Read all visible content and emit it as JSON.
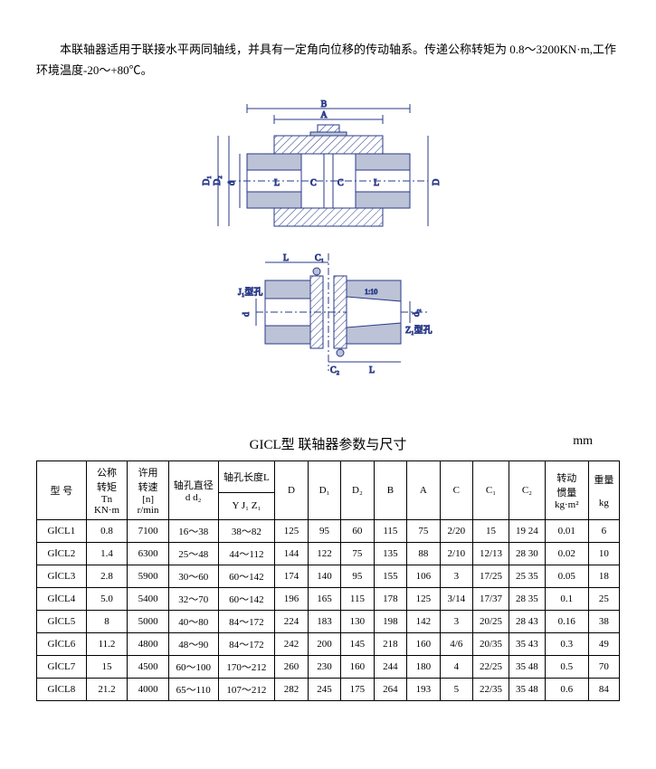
{
  "intro": "本联轴器适用于联接水平两同轴线，并具有一定角向位移的传动轴系。传递公称转矩为 0.8～3200KN·m,工作环境温度-20～+80℃。",
  "diagram": {
    "top_labels": [
      "B",
      "A",
      "L",
      "C",
      "C",
      "L",
      "D",
      "D₂",
      "D₁",
      "d",
      "d₁"
    ],
    "bottom_labels": [
      "L",
      "C₁",
      "J₁型孔",
      "d",
      "C₂",
      "L",
      "Z₁型孔",
      "d₂",
      "1:10"
    ],
    "stroke": "#2a3a8a",
    "fill": "#bcc3d6",
    "hatch": "#2a3a8a"
  },
  "tableTitle": "GICL型 联轴器参数与尺寸",
  "tableUnit": "mm",
  "headers": {
    "model": "型 号",
    "tn": [
      "公称",
      "转矩",
      "Tn",
      "KN·m"
    ],
    "n": [
      "许用",
      "转速",
      "[n]",
      "r/min"
    ],
    "d": [
      "轴孔直径",
      "d d₂"
    ],
    "l": [
      "轴孔长度L",
      "Y J₁ Z₁"
    ],
    "D": "D",
    "D1": "D₁",
    "D2": "D₂",
    "B": "B",
    "A": "A",
    "C": "C",
    "C1": "C₁",
    "C2": "C₂",
    "J": [
      "转动",
      "惯量",
      "kg·m²"
    ],
    "W": [
      "重量",
      "kg"
    ]
  },
  "rows": [
    {
      "model": "GⅠCL1",
      "tn": "0.8",
      "n": "7100",
      "d": "16～38",
      "l": "38～82",
      "D": "125",
      "D1": "95",
      "D2": "60",
      "B": "115",
      "A": "75",
      "C": "2/20",
      "C1": "15",
      "C2": "19 24",
      "J": "0.01",
      "W": "6"
    },
    {
      "model": "GⅠCL2",
      "tn": "1.4",
      "n": "6300",
      "d": "25～48",
      "l": "44～112",
      "D": "144",
      "D1": "122",
      "D2": "75",
      "B": "135",
      "A": "88",
      "C": "2/10",
      "C1": "12/13",
      "C2": "28 30",
      "J": "0.02",
      "W": "10"
    },
    {
      "model": "GⅠCL3",
      "tn": "2.8",
      "n": "5900",
      "d": "30～60",
      "l": "60～142",
      "D": "174",
      "D1": "140",
      "D2": "95",
      "B": "155",
      "A": "106",
      "C": "3",
      "C1": "17/25",
      "C2": "25 35",
      "J": "0.05",
      "W": "18"
    },
    {
      "model": "GⅠCL4",
      "tn": "5.0",
      "n": "5400",
      "d": "32～70",
      "l": "60～142",
      "D": "196",
      "D1": "165",
      "D2": "115",
      "B": "178",
      "A": "125",
      "C": "3/14",
      "C1": "17/37",
      "C2": "28 35",
      "J": "0.1",
      "W": "25"
    },
    {
      "model": "GⅠCL5",
      "tn": "8",
      "n": "5000",
      "d": "40～80",
      "l": "84～172",
      "D": "224",
      "D1": "183",
      "D2": "130",
      "B": "198",
      "A": "142",
      "C": "3",
      "C1": "20/25",
      "C2": "28 43",
      "J": "0.16",
      "W": "38"
    },
    {
      "model": "GⅠCL6",
      "tn": "11.2",
      "n": "4800",
      "d": "48～90",
      "l": "84～172",
      "D": "242",
      "D1": "200",
      "D2": "145",
      "B": "218",
      "A": "160",
      "C": "4/6",
      "C1": "20/35",
      "C2": "35 43",
      "J": "0.3",
      "W": "49"
    },
    {
      "model": "GⅠCL7",
      "tn": "15",
      "n": "4500",
      "d": "60～100",
      "l": "170～212",
      "D": "260",
      "D1": "230",
      "D2": "160",
      "B": "244",
      "A": "180",
      "C": "4",
      "C1": "22/25",
      "C2": "35 48",
      "J": "0.5",
      "W": "70"
    },
    {
      "model": "GⅠCL8",
      "tn": "21.2",
      "n": "4000",
      "d": "65～110",
      "l": "107～212",
      "D": "282",
      "D1": "245",
      "D2": "175",
      "B": "264",
      "A": "193",
      "C": "5",
      "C1": "22/35",
      "C2": "35 48",
      "J": "0.6",
      "W": "84"
    }
  ]
}
